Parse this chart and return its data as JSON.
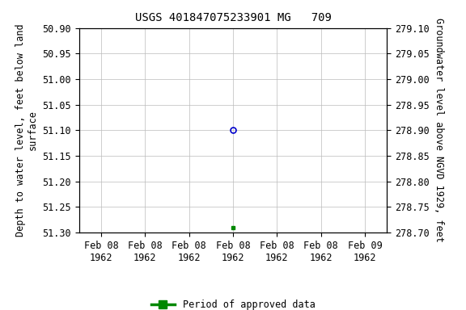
{
  "title": "USGS 401847075233901 MG   709",
  "ylabel_left": "Depth to water level, feet below land\nsurface",
  "ylabel_right": "Groundwater level above NGVD 1929, feet",
  "ylim_left": [
    51.3,
    50.9
  ],
  "ylim_right": [
    278.7,
    279.1
  ],
  "yticks_left": [
    50.9,
    50.95,
    51.0,
    51.05,
    51.1,
    51.15,
    51.2,
    51.25,
    51.3
  ],
  "yticks_right": [
    279.1,
    279.05,
    279.0,
    278.95,
    278.9,
    278.85,
    278.8,
    278.75,
    278.7
  ],
  "blue_point_x_hours": 72,
  "blue_point_y": 51.1,
  "green_point_x_hours": 72,
  "green_point_y": 51.29,
  "blue_color": "#0000cc",
  "green_color": "#008800",
  "background_color": "#ffffff",
  "grid_color": "#bbbbbb",
  "legend_label": "Period of approved data",
  "title_fontsize": 10,
  "tick_fontsize": 8.5,
  "label_fontsize": 8.5,
  "x_tick_hours": [
    0,
    24,
    48,
    72,
    96,
    120,
    144
  ],
  "x_tick_labels": [
    "Feb 08\n1962",
    "Feb 08\n1962",
    "Feb 08\n1962",
    "Feb 08\n1962",
    "Feb 08\n1962",
    "Feb 08\n1962",
    "Feb 09\n1962"
  ]
}
